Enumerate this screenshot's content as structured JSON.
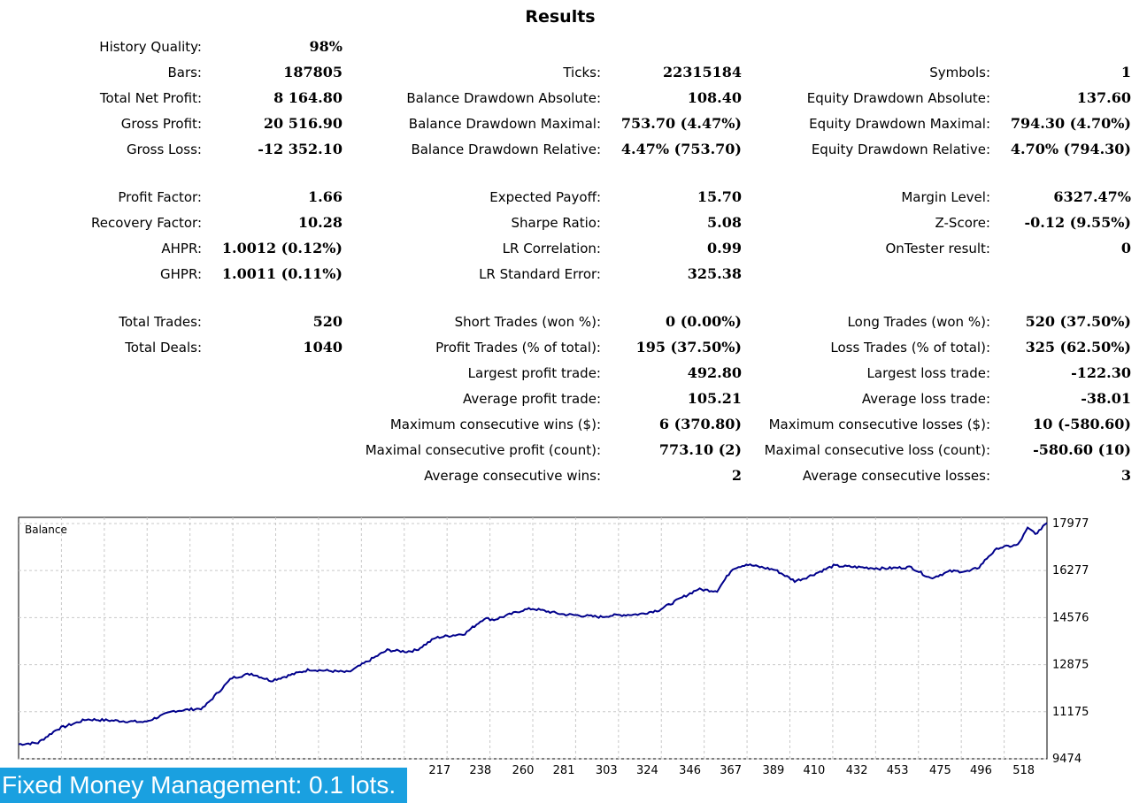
{
  "title": "Results",
  "stats": {
    "history_quality": {
      "label": "History Quality:",
      "value": "98%"
    },
    "bars": {
      "label": "Bars:",
      "value": "187805"
    },
    "ticks": {
      "label": "Ticks:",
      "value": "22315184"
    },
    "symbols": {
      "label": "Symbols:",
      "value": "1"
    },
    "total_net_profit": {
      "label": "Total Net Profit:",
      "value": "8 164.80"
    },
    "balance_dd_abs": {
      "label": "Balance Drawdown Absolute:",
      "value": "108.40"
    },
    "equity_dd_abs": {
      "label": "Equity Drawdown Absolute:",
      "value": "137.60"
    },
    "gross_profit": {
      "label": "Gross Profit:",
      "value": "20 516.90"
    },
    "balance_dd_max": {
      "label": "Balance Drawdown Maximal:",
      "value": "753.70 (4.47%)"
    },
    "equity_dd_max": {
      "label": "Equity Drawdown Maximal:",
      "value": "794.30 (4.70%)"
    },
    "gross_loss": {
      "label": "Gross Loss:",
      "value": "-12 352.10"
    },
    "balance_dd_rel": {
      "label": "Balance Drawdown Relative:",
      "value": "4.47% (753.70)"
    },
    "equity_dd_rel": {
      "label": "Equity Drawdown Relative:",
      "value": "4.70% (794.30)"
    },
    "profit_factor": {
      "label": "Profit Factor:",
      "value": "1.66"
    },
    "expected_payoff": {
      "label": "Expected Payoff:",
      "value": "15.70"
    },
    "margin_level": {
      "label": "Margin Level:",
      "value": "6327.47%"
    },
    "recovery_factor": {
      "label": "Recovery Factor:",
      "value": "10.28"
    },
    "sharpe_ratio": {
      "label": "Sharpe Ratio:",
      "value": "5.08"
    },
    "z_score": {
      "label": "Z-Score:",
      "value": "-0.12 (9.55%)"
    },
    "ahpr": {
      "label": "AHPR:",
      "value": "1.0012 (0.12%)"
    },
    "lr_correlation": {
      "label": "LR Correlation:",
      "value": "0.99"
    },
    "ontester": {
      "label": "OnTester result:",
      "value": "0"
    },
    "ghpr": {
      "label": "GHPR:",
      "value": "1.0011 (0.11%)"
    },
    "lr_std_error": {
      "label": "LR Standard Error:",
      "value": "325.38"
    },
    "total_trades": {
      "label": "Total Trades:",
      "value": "520"
    },
    "short_trades": {
      "label": "Short Trades (won %):",
      "value": "0 (0.00%)"
    },
    "long_trades": {
      "label": "Long Trades (won %):",
      "value": "520 (37.50%)"
    },
    "total_deals": {
      "label": "Total Deals:",
      "value": "1040"
    },
    "profit_trades": {
      "label": "Profit Trades (% of total):",
      "value": "195 (37.50%)"
    },
    "loss_trades": {
      "label": "Loss Trades (% of total):",
      "value": "325 (62.50%)"
    },
    "largest_profit": {
      "label": "Largest profit trade:",
      "value": "492.80"
    },
    "largest_loss": {
      "label": "Largest loss trade:",
      "value": "-122.30"
    },
    "avg_profit": {
      "label": "Average profit trade:",
      "value": "105.21"
    },
    "avg_loss": {
      "label": "Average loss trade:",
      "value": "-38.01"
    },
    "max_consec_wins": {
      "label": "Maximum consecutive wins ($):",
      "value": "6 (370.80)"
    },
    "max_consec_losses": {
      "label": "Maximum consecutive losses ($):",
      "value": "10 (-580.60)"
    },
    "maximal_consec_profit": {
      "label": "Maximal consecutive profit (count):",
      "value": "773.10 (2)"
    },
    "maximal_consec_loss": {
      "label": "Maximal consecutive loss (count):",
      "value": "-580.60 (10)"
    },
    "avg_consec_wins": {
      "label": "Average consecutive wins:",
      "value": "2"
    },
    "avg_consec_losses": {
      "label": "Average consecutive losses:",
      "value": "3"
    }
  },
  "banner": "Fixed Money Management: 0.1 lots.",
  "chart_data": {
    "type": "line",
    "title": "Balance",
    "y_ticks": [
      "17977",
      "16277",
      "14576",
      "12875",
      "11175",
      "9474"
    ],
    "x_ticks": [
      "217",
      "238",
      "260",
      "281",
      "303",
      "324",
      "346",
      "367",
      "389",
      "410",
      "432",
      "453",
      "475",
      "496",
      "518"
    ],
    "ylim": [
      9474,
      18200
    ],
    "xlim": [
      0,
      530
    ],
    "series": [
      {
        "line_color": "#00008b",
        "x": [
          0,
          10,
          20,
          35,
          50,
          65,
          80,
          95,
          110,
          120,
          130,
          150,
          170,
          190,
          200,
          205,
          215,
          230,
          240,
          245,
          260,
          265,
          280,
          300,
          305,
          320,
          330,
          350,
          358,
          360,
          368,
          375,
          390,
          400,
          405,
          420,
          445,
          460,
          470,
          480,
          490,
          495,
          500,
          505,
          515,
          520,
          525,
          528,
          530
        ],
        "y": [
          10000,
          10050,
          10550,
          10900,
          10850,
          10800,
          11200,
          11300,
          12400,
          12550,
          12300,
          12700,
          12600,
          13400,
          13350,
          13400,
          13850,
          14000,
          14550,
          14500,
          14850,
          14900,
          14700,
          14600,
          14650,
          14700,
          14850,
          15600,
          15550,
          15550,
          16350,
          16500,
          16300,
          15900,
          16000,
          16450,
          16350,
          16400,
          16000,
          16250,
          16250,
          16400,
          16800,
          17100,
          17200,
          17800,
          17600,
          17900,
          18000
        ]
      }
    ]
  }
}
